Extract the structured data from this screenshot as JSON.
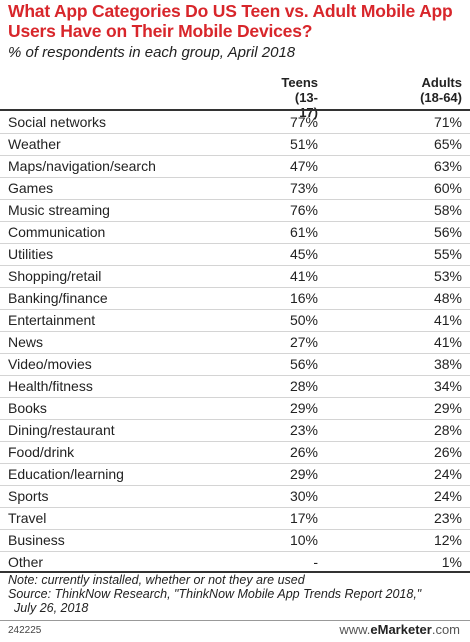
{
  "title": "What App Categories Do US Teen vs. Adult Mobile App Users Have on Their Mobile Devices?",
  "subtitle": "% of respondents in each group, April 2018",
  "columns": {
    "teens_line1": "Teens",
    "teens_line2": "(13-17)",
    "adults_line1": "Adults",
    "adults_line2": "(18-64)"
  },
  "chart_data": {
    "type": "table",
    "title": "What App Categories Do US Teen vs. Adult Mobile App Users Have on Their Mobile Devices?",
    "subtitle": "% of respondents in each group, April 2018",
    "columns": [
      "Teens (13-17)",
      "Adults (18-64)"
    ],
    "rows": [
      {
        "category": "Social networks",
        "teens": "77%",
        "adults": "71%"
      },
      {
        "category": "Weather",
        "teens": "51%",
        "adults": "65%"
      },
      {
        "category": "Maps/navigation/search",
        "teens": "47%",
        "adults": "63%"
      },
      {
        "category": "Games",
        "teens": "73%",
        "adults": "60%"
      },
      {
        "category": "Music streaming",
        "teens": "76%",
        "adults": "58%"
      },
      {
        "category": "Communication",
        "teens": "61%",
        "adults": "56%"
      },
      {
        "category": "Utilities",
        "teens": "45%",
        "adults": "55%"
      },
      {
        "category": "Shopping/retail",
        "teens": "41%",
        "adults": "53%"
      },
      {
        "category": "Banking/finance",
        "teens": "16%",
        "adults": "48%"
      },
      {
        "category": "Entertainment",
        "teens": "50%",
        "adults": "41%"
      },
      {
        "category": "News",
        "teens": "27%",
        "adults": "41%"
      },
      {
        "category": "Video/movies",
        "teens": "56%",
        "adults": "38%"
      },
      {
        "category": "Health/fitness",
        "teens": "28%",
        "adults": "34%"
      },
      {
        "category": "Books",
        "teens": "29%",
        "adults": "29%"
      },
      {
        "category": "Dining/restaurant",
        "teens": "23%",
        "adults": "28%"
      },
      {
        "category": "Food/drink",
        "teens": "26%",
        "adults": "26%"
      },
      {
        "category": "Education/learning",
        "teens": "29%",
        "adults": "24%"
      },
      {
        "category": "Sports",
        "teens": "30%",
        "adults": "24%"
      },
      {
        "category": "Travel",
        "teens": "17%",
        "adults": "23%"
      },
      {
        "category": "Business",
        "teens": "10%",
        "adults": "12%"
      },
      {
        "category": "Other",
        "teens": "-",
        "adults": "1%"
      }
    ]
  },
  "notes": {
    "line1": "Note: currently installed, whether or not they are used",
    "line2": "Source: ThinkNow Research, \"ThinkNow Mobile App Trends Report 2018,\"",
    "line3": "July 26, 2018"
  },
  "footer": {
    "chart_id": "242225",
    "logo_prefix": "www.",
    "logo_brand": "eMarketer",
    "logo_suffix": ".com"
  },
  "colors": {
    "title": "#d8262b",
    "rule": "#333333",
    "row_divider": "#d4d4d4"
  }
}
